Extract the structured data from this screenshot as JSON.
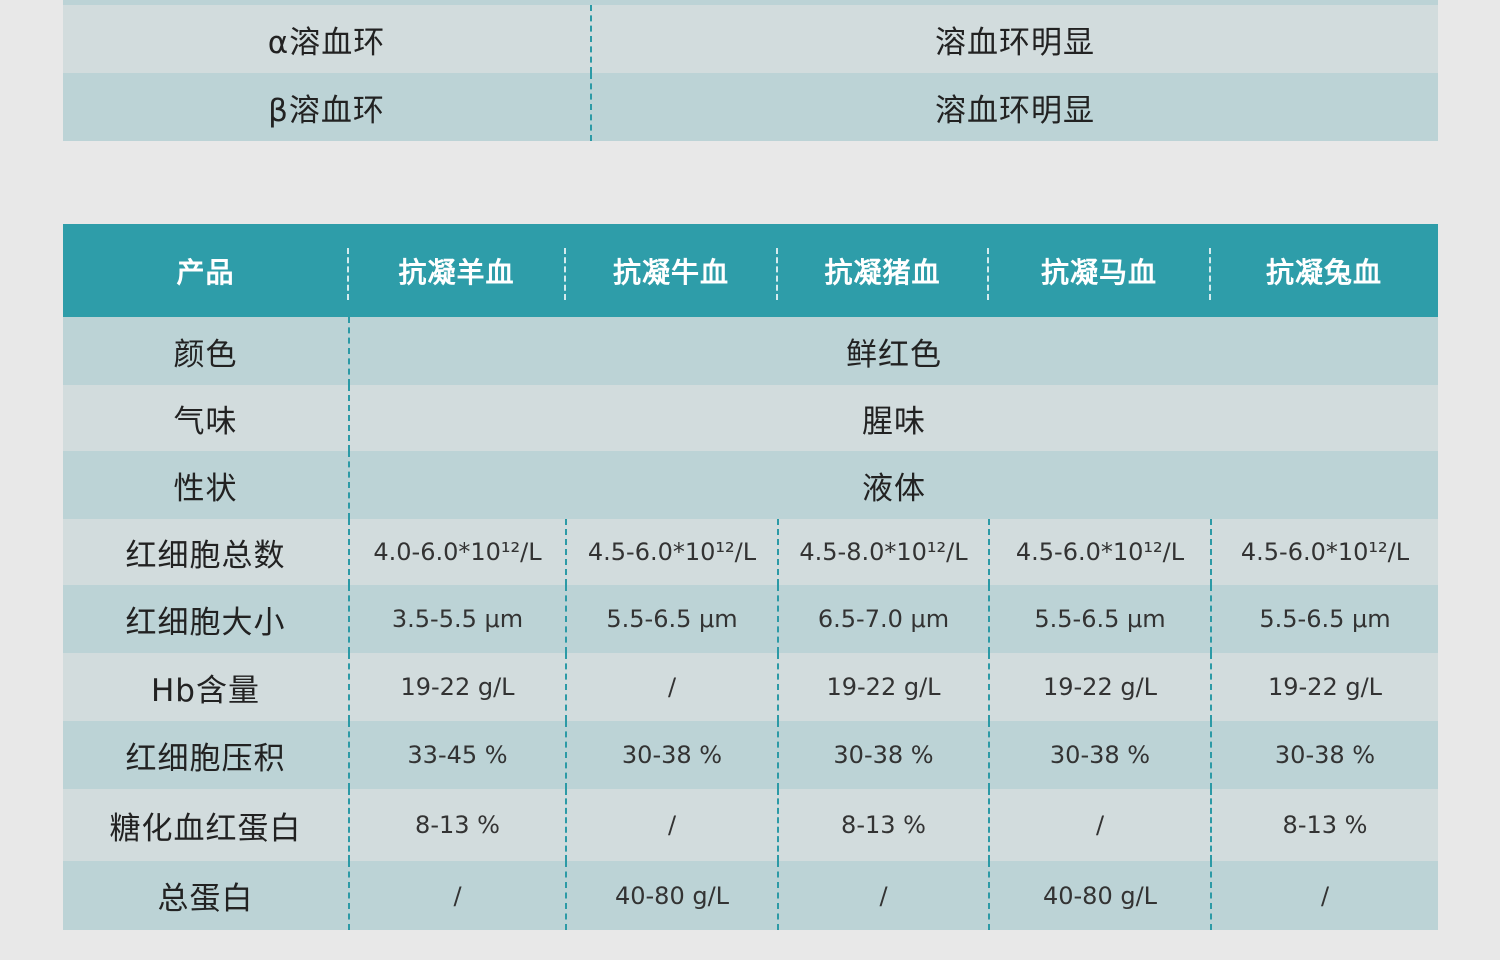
{
  "hemolysis_table": {
    "rows": [
      {
        "label": "α溶血环",
        "value": "溶血环明显"
      },
      {
        "label": "β溶血环",
        "value": "溶血环明显"
      }
    ]
  },
  "spec_table": {
    "headers": [
      "产品",
      "抗凝羊血",
      "抗凝牛血",
      "抗凝猪血",
      "抗凝马血",
      "抗凝兔血"
    ],
    "rows": [
      {
        "label": "颜色",
        "merged": "鲜红色"
      },
      {
        "label": "气味",
        "merged": "腥味"
      },
      {
        "label": "性状",
        "merged": "液体"
      },
      {
        "label": "红细胞总数",
        "values": [
          "4.0-6.0*10¹²/L",
          "4.5-6.0*10¹²/L",
          "4.5-8.0*10¹²/L",
          "4.5-6.0*10¹²/L",
          "4.5-6.0*10¹²/L"
        ]
      },
      {
        "label": "红细胞大小",
        "values": [
          "3.5-5.5 μm",
          "5.5-6.5 μm",
          "6.5-7.0 μm",
          "5.5-6.5 μm",
          "5.5-6.5 μm"
        ]
      },
      {
        "label": "Hb含量",
        "values": [
          "19-22 g/L",
          "/",
          "19-22 g/L",
          "19-22 g/L",
          "19-22 g/L"
        ]
      },
      {
        "label": "红细胞压积",
        "values": [
          "33-45 %",
          "30-38 %",
          "30-38 %",
          "30-38 %",
          "30-38 %"
        ]
      },
      {
        "label": "糖化血红蛋白",
        "values": [
          "8-13 %",
          "/",
          "8-13 %",
          "/",
          "8-13 %"
        ]
      },
      {
        "label": "总蛋白",
        "values": [
          "/",
          "40-80 g/L",
          "/",
          "40-80 g/L",
          "/"
        ]
      }
    ]
  },
  "colors": {
    "header": "#2e9da9",
    "row_light": "#d2dcdd",
    "row_dark": "#bcd3d6",
    "divider": "#2c9aa6",
    "background": "#e8e8e8"
  }
}
